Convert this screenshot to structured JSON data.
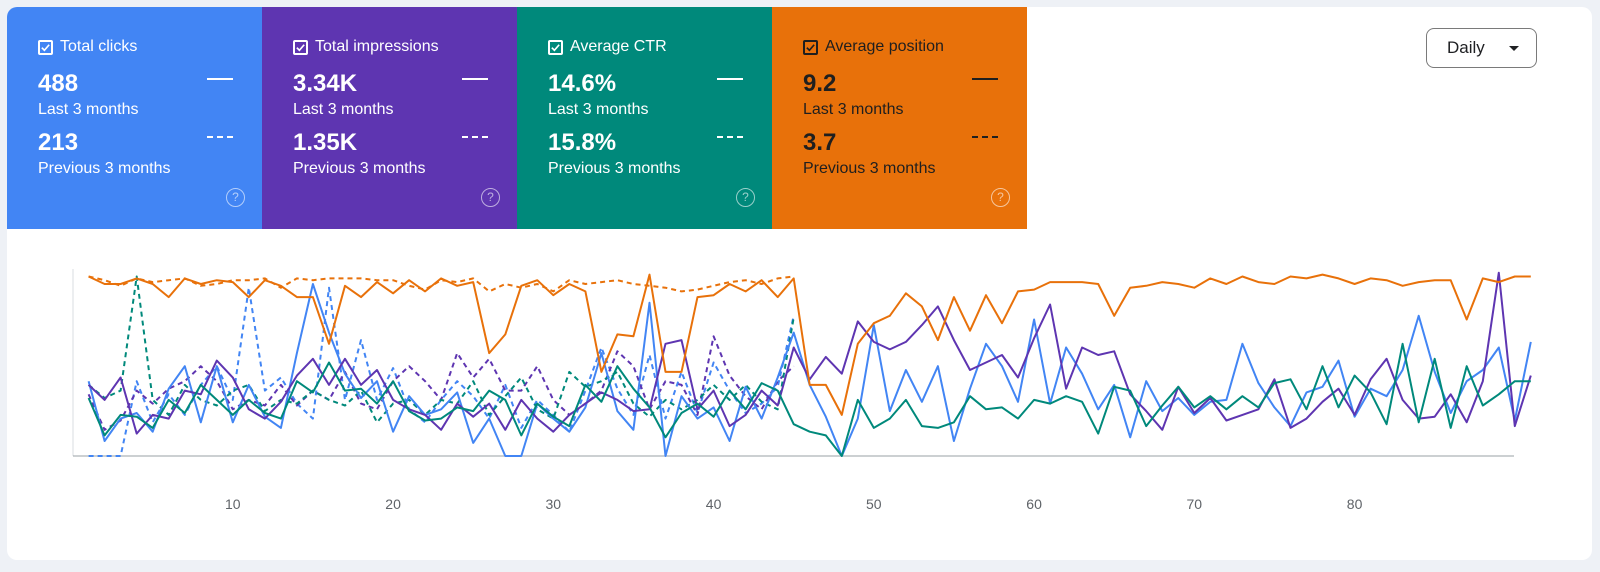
{
  "dropdown": {
    "label": "Daily"
  },
  "cards": [
    {
      "title": "Total clicks",
      "value": "488",
      "value_label": "Last 3 months",
      "prev": "213",
      "prev_label": "Previous 3 months",
      "color": "#4285f4",
      "text": "light",
      "help": "?"
    },
    {
      "title": "Total impressions",
      "value": "3.34K",
      "value_label": "Last 3 months",
      "prev": "1.35K",
      "prev_label": "Previous 3 months",
      "color": "#5e35b1",
      "text": "light",
      "help": "?"
    },
    {
      "title": "Average CTR",
      "value": "14.6%",
      "value_label": "Last 3 months",
      "prev": "15.8%",
      "prev_label": "Previous 3 months",
      "color": "#00897b",
      "text": "light",
      "help": "?"
    },
    {
      "title": "Average position",
      "value": "9.2",
      "value_label": "Last 3 months",
      "prev": "3.7",
      "prev_label": "Previous 3 months",
      "color": "#e8710a",
      "text": "dark",
      "help": "?"
    }
  ],
  "chart_data": {
    "type": "line",
    "xlim": [
      1,
      90
    ],
    "ylim": [
      0,
      1
    ],
    "xticks": [
      10,
      20,
      30,
      40,
      50,
      60,
      70,
      80
    ],
    "y_axis_labels": "none",
    "note": "Y values normalized 0-1 per metric (no y-axis labels shown)",
    "series": [
      {
        "name": "Total clicks",
        "color": "#4285f4",
        "style": "solid",
        "x_start": 1,
        "values": [
          0.4,
          0.08,
          0.2,
          0.23,
          0.13,
          0.36,
          0.48,
          0.18,
          0.48,
          0.18,
          0.38,
          0.21,
          0.15,
          0.55,
          0.92,
          0.66,
          0.44,
          0.31,
          0.4,
          0.13,
          0.32,
          0.22,
          0.25,
          0.34,
          0.07,
          0.2,
          0.0,
          0.0,
          0.28,
          0.2,
          0.13,
          0.26,
          0.55,
          0.24,
          0.14,
          0.82,
          0.0,
          0.32,
          0.2,
          0.26,
          0.08,
          0.37,
          0.2,
          0.42,
          0.66,
          0.38,
          0.21,
          0.0,
          0.2,
          0.7,
          0.24,
          0.46,
          0.29,
          0.48,
          0.08,
          0.36,
          0.6,
          0.48,
          0.29,
          0.73,
          0.28,
          0.58,
          0.44,
          0.25,
          0.38,
          0.1,
          0.4,
          0.24,
          0.31,
          0.22,
          0.29,
          0.3,
          0.6,
          0.39,
          0.26,
          0.16,
          0.34,
          0.37,
          0.51,
          0.21,
          0.36,
          0.32,
          0.46,
          0.75,
          0.45,
          0.23,
          0.4,
          0.46,
          0.58,
          0.19,
          0.61
        ]
      },
      {
        "name": "Total impressions",
        "color": "#5e35b1",
        "style": "solid",
        "x_start": 1,
        "values": [
          0.38,
          0.3,
          0.42,
          0.12,
          0.22,
          0.2,
          0.35,
          0.33,
          0.51,
          0.42,
          0.25,
          0.2,
          0.29,
          0.43,
          0.52,
          0.38,
          0.52,
          0.38,
          0.46,
          0.3,
          0.25,
          0.22,
          0.14,
          0.28,
          0.21,
          0.28,
          0.14,
          0.3,
          0.2,
          0.13,
          0.22,
          0.28,
          0.34,
          0.3,
          0.24,
          0.25,
          0.6,
          0.62,
          0.25,
          0.35,
          0.16,
          0.22,
          0.35,
          0.27,
          0.58,
          0.41,
          0.53,
          0.44,
          0.72,
          0.61,
          0.57,
          0.61,
          0.7,
          0.8,
          0.62,
          0.46,
          0.5,
          0.54,
          0.42,
          0.63,
          0.81,
          0.36,
          0.58,
          0.54,
          0.56,
          0.33,
          0.24,
          0.14,
          0.37,
          0.23,
          0.31,
          0.19,
          0.22,
          0.25,
          0.41,
          0.15,
          0.2,
          0.29,
          0.36,
          0.22,
          0.41,
          0.52,
          0.3,
          0.2,
          0.21,
          0.33,
          0.18,
          0.4,
          0.98,
          0.16,
          0.43
        ]
      },
      {
        "name": "Average CTR",
        "color": "#00897b",
        "style": "solid",
        "x_start": 1,
        "values": [
          0.31,
          0.11,
          0.22,
          0.21,
          0.15,
          0.3,
          0.23,
          0.38,
          0.3,
          0.22,
          0.3,
          0.23,
          0.2,
          0.4,
          0.34,
          0.5,
          0.35,
          0.36,
          0.28,
          0.4,
          0.24,
          0.19,
          0.2,
          0.26,
          0.24,
          0.35,
          0.3,
          0.11,
          0.28,
          0.21,
          0.16,
          0.38,
          0.29,
          0.48,
          0.36,
          0.26,
          0.1,
          0.23,
          0.28,
          0.21,
          0.35,
          0.25,
          0.39,
          0.35,
          0.17,
          0.13,
          0.11,
          0.0,
          0.3,
          0.15,
          0.2,
          0.3,
          0.16,
          0.15,
          0.18,
          0.32,
          0.25,
          0.26,
          0.2,
          0.3,
          0.28,
          0.32,
          0.29,
          0.12,
          0.37,
          0.35,
          0.16,
          0.27,
          0.37,
          0.26,
          0.32,
          0.25,
          0.32,
          0.26,
          0.39,
          0.41,
          0.25,
          0.48,
          0.26,
          0.43,
          0.34,
          0.17,
          0.6,
          0.18,
          0.52,
          0.15,
          0.48,
          0.27,
          0.33,
          0.4,
          0.4
        ]
      },
      {
        "name": "Average position",
        "color": "#e8710a",
        "style": "solid",
        "x_start": 1,
        "values": [
          0.96,
          0.92,
          0.92,
          0.95,
          0.92,
          0.85,
          0.95,
          0.92,
          0.94,
          0.93,
          0.85,
          0.94,
          0.91,
          0.85,
          0.85,
          0.6,
          0.91,
          0.85,
          0.93,
          0.87,
          0.94,
          0.88,
          0.95,
          0.91,
          0.93,
          0.55,
          0.65,
          0.91,
          0.94,
          0.86,
          0.92,
          0.88,
          0.45,
          0.65,
          0.64,
          0.97,
          0.45,
          0.45,
          0.85,
          0.86,
          0.92,
          0.88,
          0.94,
          0.85,
          0.95,
          0.38,
          0.38,
          0.22,
          0.6,
          0.71,
          0.75,
          0.87,
          0.8,
          0.62,
          0.85,
          0.67,
          0.86,
          0.71,
          0.88,
          0.89,
          0.93,
          0.93,
          0.93,
          0.92,
          0.75,
          0.9,
          0.91,
          0.93,
          0.92,
          0.9,
          0.95,
          0.92,
          0.96,
          0.93,
          0.92,
          0.96,
          0.95,
          0.97,
          0.95,
          0.92,
          0.95,
          0.94,
          0.91,
          0.93,
          0.94,
          0.94,
          0.73,
          0.95,
          0.93,
          0.96,
          0.96
        ]
      },
      {
        "name": "Total clicks (previous)",
        "color": "#4285f4",
        "style": "dashed",
        "x_start": 1,
        "values": [
          0.0,
          0.0,
          0.0,
          0.4,
          0.18,
          0.33,
          0.22,
          0.38,
          0.48,
          0.3,
          0.9,
          0.35,
          0.42,
          0.28,
          0.2,
          0.9,
          0.3,
          0.62,
          0.3,
          0.47,
          0.25,
          0.18,
          0.3,
          0.4,
          0.32,
          0.2,
          0.38,
          0.15,
          0.3,
          0.22,
          0.13,
          0.35,
          0.58,
          0.36,
          0.22,
          0.54,
          0.2,
          0.45,
          0.23,
          0.5,
          0.35,
          0.23,
          0.28,
          0.37,
          0.75
        ]
      },
      {
        "name": "Total impressions (previous)",
        "color": "#5e35b1",
        "style": "dashed",
        "x_start": 1,
        "values": [
          0.33,
          0.14,
          0.19,
          0.35,
          0.28,
          0.36,
          0.4,
          0.48,
          0.4,
          0.25,
          0.3,
          0.27,
          0.38,
          0.27,
          0.35,
          0.3,
          0.45,
          0.28,
          0.25,
          0.4,
          0.48,
          0.4,
          0.3,
          0.55,
          0.42,
          0.52,
          0.35,
          0.35,
          0.48,
          0.3,
          0.22,
          0.28,
          0.35,
          0.56,
          0.48,
          0.25,
          0.4,
          0.38,
          0.22,
          0.64,
          0.43,
          0.32,
          0.25,
          0.4,
          0.48
        ]
      },
      {
        "name": "Average CTR (previous)",
        "color": "#00897b",
        "style": "dashed",
        "x_start": 1,
        "values": [
          0.38,
          0.31,
          0.35,
          0.96,
          0.3,
          0.22,
          0.38,
          0.3,
          0.27,
          0.35,
          0.38,
          0.24,
          0.3,
          0.28,
          0.35,
          0.3,
          0.27,
          0.35,
          0.18,
          0.28,
          0.3,
          0.22,
          0.3,
          0.28,
          0.4,
          0.22,
          0.32,
          0.42,
          0.25,
          0.2,
          0.45,
          0.37,
          0.4,
          0.45,
          0.28,
          0.21,
          0.3,
          0.25,
          0.3,
          0.38,
          0.3,
          0.38,
          0.29,
          0.25,
          0.74
        ]
      },
      {
        "name": "Average position (previous)",
        "color": "#e8710a",
        "style": "dashed",
        "x_start": 1,
        "values": [
          0.96,
          0.94,
          0.91,
          0.95,
          0.93,
          0.94,
          0.95,
          0.91,
          0.92,
          0.94,
          0.94,
          0.95,
          0.9,
          0.95,
          0.94,
          0.95,
          0.95,
          0.95,
          0.94,
          0.94,
          0.91,
          0.89,
          0.94,
          0.93,
          0.95,
          0.88,
          0.92,
          0.9,
          0.92,
          0.88,
          0.94,
          0.92,
          0.93,
          0.94,
          0.92,
          0.91,
          0.9,
          0.88,
          0.89,
          0.91,
          0.93,
          0.94,
          0.92,
          0.95,
          0.96
        ]
      }
    ]
  }
}
